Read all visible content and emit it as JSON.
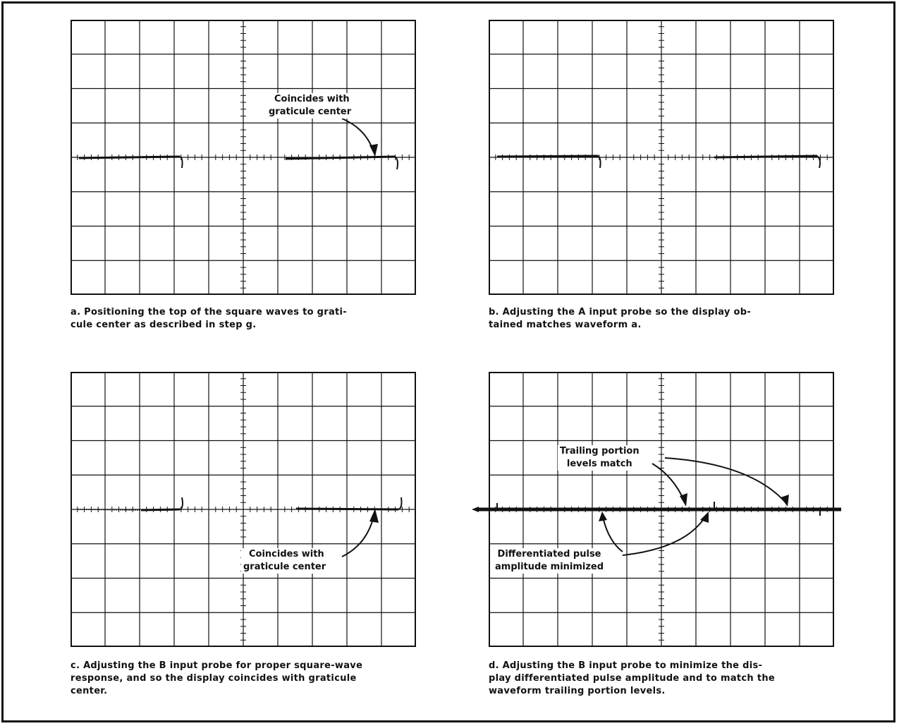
{
  "panels": [
    {
      "id": "a",
      "caption": "a. Positioning the top of the square waves to graticule center as described in step g.",
      "caption_line1": "a. Positioning the top of the square waves to grati-",
      "caption_line2": "cule center as described in step g.",
      "annotation_1": "Coincides with",
      "annotation_2": "graticule center"
    },
    {
      "id": "b",
      "caption_line1": "b. Adjusting the A input probe so the display ob-",
      "caption_line2": "tained matches waveform a."
    },
    {
      "id": "c",
      "caption_line1": "c. Adjusting the B input probe for proper square-wave",
      "caption_line2": "response, and so the display coincides with graticule",
      "caption_line3": "center.",
      "annotation_1": "Coincides with",
      "annotation_2": "graticule center"
    },
    {
      "id": "d",
      "caption_line1": "d. Adjusting the B input probe to minimize the dis-",
      "caption_line2": "play differentiated pulse amplitude and to match the",
      "caption_line3": "waveform trailing portion levels.",
      "annotation_top_1": "Trailing portion",
      "annotation_top_2": "levels match",
      "annotation_bottom_1": "Differentiated pulse",
      "annotation_bottom_2": "amplitude minimized"
    }
  ],
  "graticule": {
    "divisions_x": 10,
    "divisions_y": 8
  },
  "colors": {
    "ink": "#111111",
    "paper": "#ffffff"
  }
}
